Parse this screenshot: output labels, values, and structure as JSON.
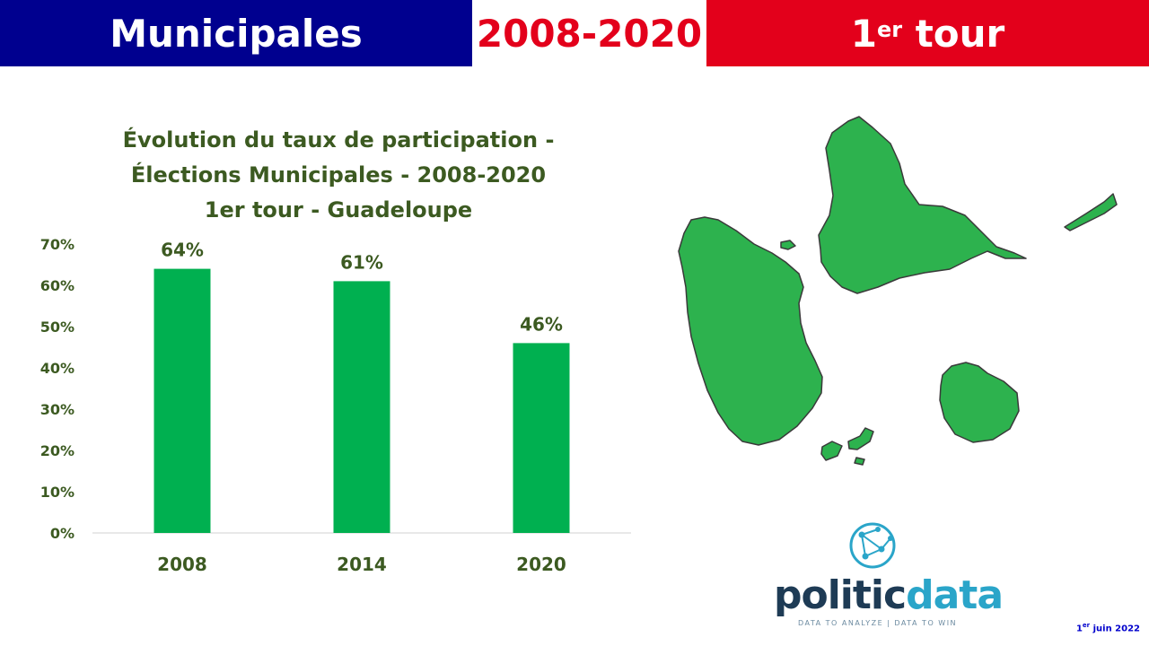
{
  "banner": {
    "left_text": "Municipales",
    "middle_text": "2008-2020",
    "right_number": "1",
    "right_sup": "er",
    "right_text": " tour",
    "colors": {
      "left_bg": "#00008f",
      "middle_text": "#e3001b",
      "right_bg": "#e3001b"
    }
  },
  "chart_data": {
    "type": "bar",
    "title_lines": [
      "Évolution du taux de participation -",
      "Élections Municipales - 2008-2020",
      "1er tour - Guadeloupe"
    ],
    "categories": [
      "2008",
      "2014",
      "2020"
    ],
    "values": [
      64,
      61,
      46
    ],
    "data_labels": [
      "64%",
      "61%",
      "46%"
    ],
    "y_ticks": [
      "0%",
      "10%",
      "20%",
      "30%",
      "40%",
      "50%",
      "60%",
      "70%"
    ],
    "ylim": [
      0,
      70
    ],
    "grid": false,
    "bar_color": "#00b050"
  },
  "map": {
    "icon": "guadeloupe-map-icon",
    "color": "#2db24e"
  },
  "logo": {
    "icon": "network-globe-icon",
    "word1": "politic",
    "word2": "data",
    "tagline": "DATA TO ANALYZE | DATA TO WIN"
  },
  "footer": {
    "day": "1",
    "day_sup": "er",
    "date_rest": " juin 2022"
  }
}
